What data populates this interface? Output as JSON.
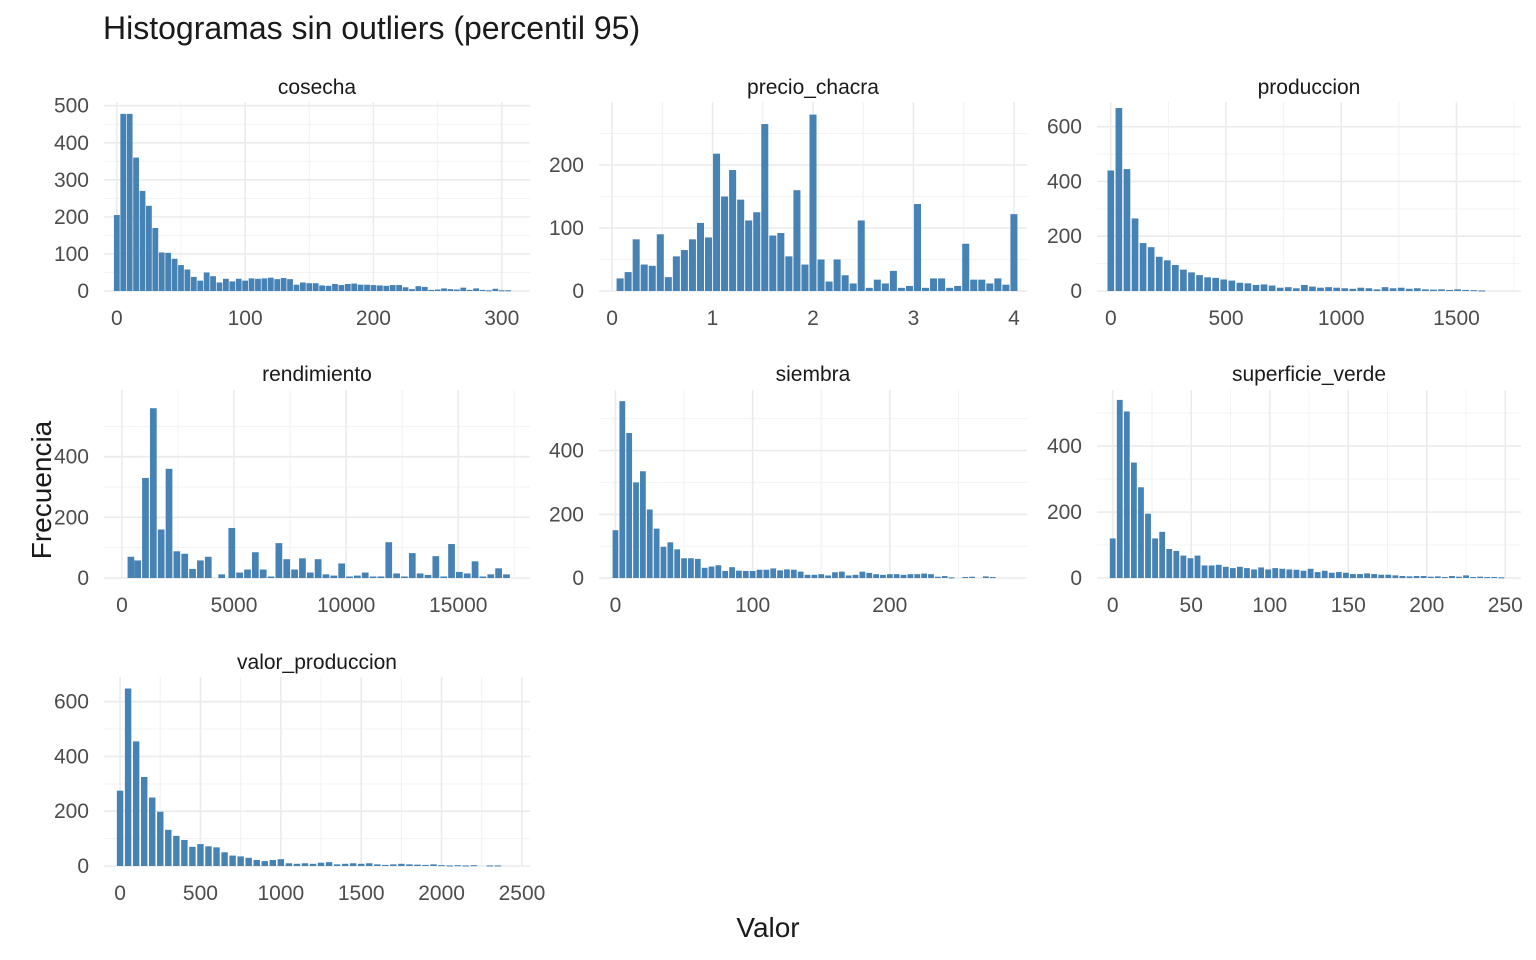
{
  "title": "Histogramas sin outliers (percentil 95)",
  "xlabel": "Valor",
  "ylabel": "Frecuencia",
  "colors": {
    "bar": "#4682B4",
    "grid_major": "#EBEBEB",
    "grid_minor": "#F3F3F3",
    "tick_text": "#4D4D4D"
  },
  "chart_data": [
    {
      "type": "bar",
      "facet": "cosecha",
      "grid": true,
      "xlim": [
        -10,
        322
      ],
      "ylim": [
        0,
        510
      ],
      "x_ticks": [
        0,
        100,
        200,
        300
      ],
      "y_ticks": [
        0,
        100,
        200,
        300,
        400,
        500
      ],
      "bin_width": 4.5,
      "x": [
        0,
        5,
        10,
        15,
        20,
        25,
        30,
        35,
        40,
        45,
        50,
        55,
        60,
        65,
        70,
        75,
        80,
        85,
        90,
        95,
        100,
        105,
        110,
        115,
        120,
        125,
        130,
        135,
        140,
        145,
        150,
        155,
        160,
        165,
        170,
        175,
        180,
        185,
        190,
        195,
        200,
        205,
        210,
        215,
        220,
        225,
        230,
        235,
        240,
        245,
        250,
        255,
        260,
        265,
        270,
        275,
        280,
        285,
        290,
        295,
        300,
        305
      ],
      "values": [
        205,
        478,
        478,
        360,
        270,
        230,
        170,
        104,
        103,
        87,
        70,
        58,
        38,
        28,
        50,
        40,
        23,
        33,
        26,
        33,
        28,
        34,
        33,
        34,
        36,
        32,
        35,
        32,
        17,
        23,
        21,
        21,
        15,
        14,
        19,
        16,
        19,
        20,
        17,
        17,
        16,
        15,
        14,
        16,
        16,
        10,
        5,
        13,
        11,
        3,
        4,
        7,
        5,
        4,
        9,
        3,
        7,
        3,
        2,
        6,
        2,
        2
      ]
    },
    {
      "type": "bar",
      "facet": "precio_chacra",
      "grid": true,
      "xlim": [
        -0.13,
        4.13
      ],
      "ylim": [
        0,
        300
      ],
      "x_ticks": [
        0,
        1,
        2,
        3,
        4
      ],
      "y_ticks": [
        0,
        100,
        200
      ],
      "bin_width": 0.07,
      "x": [
        0.08,
        0.16,
        0.24,
        0.32,
        0.4,
        0.48,
        0.56,
        0.64,
        0.72,
        0.8,
        0.88,
        0.96,
        1.04,
        1.12,
        1.2,
        1.28,
        1.36,
        1.44,
        1.52,
        1.6,
        1.68,
        1.76,
        1.84,
        1.92,
        2.0,
        2.08,
        2.16,
        2.24,
        2.32,
        2.4,
        2.48,
        2.56,
        2.64,
        2.72,
        2.8,
        2.88,
        2.96,
        3.04,
        3.12,
        3.2,
        3.28,
        3.36,
        3.44,
        3.52,
        3.6,
        3.68,
        3.76,
        3.84,
        3.92,
        4.0
      ],
      "values": [
        20,
        30,
        82,
        42,
        40,
        90,
        22,
        55,
        65,
        82,
        108,
        85,
        218,
        150,
        192,
        145,
        112,
        125,
        265,
        88,
        92,
        55,
        160,
        42,
        280,
        50,
        15,
        50,
        25,
        12,
        112,
        5,
        18,
        12,
        32,
        5,
        8,
        138,
        5,
        20,
        20,
        5,
        8,
        75,
        18,
        18,
        12,
        20,
        10,
        122
      ]
    },
    {
      "type": "bar",
      "facet": "produccion",
      "grid": true,
      "xlim": [
        -60,
        1780
      ],
      "ylim": [
        0,
        690
      ],
      "x_ticks": [
        0,
        500,
        1000,
        1500
      ],
      "y_ticks": [
        0,
        200,
        400,
        600
      ],
      "bin_width": 29,
      "x": [
        0,
        35,
        70,
        105,
        140,
        175,
        210,
        245,
        280,
        315,
        350,
        385,
        420,
        455,
        490,
        525,
        560,
        595,
        630,
        665,
        700,
        735,
        770,
        805,
        840,
        875,
        910,
        945,
        980,
        1015,
        1050,
        1085,
        1120,
        1155,
        1190,
        1225,
        1260,
        1295,
        1330,
        1365,
        1400,
        1435,
        1470,
        1505,
        1540,
        1575,
        1610
      ],
      "values": [
        440,
        668,
        445,
        265,
        175,
        160,
        125,
        112,
        95,
        78,
        68,
        58,
        50,
        48,
        42,
        38,
        30,
        28,
        22,
        24,
        20,
        12,
        14,
        10,
        22,
        16,
        12,
        14,
        12,
        10,
        8,
        12,
        10,
        6,
        14,
        10,
        12,
        8,
        10,
        6,
        5,
        6,
        4,
        6,
        4,
        3,
        2
      ]
    },
    {
      "type": "bar",
      "facet": "rendimiento",
      "grid": true,
      "xlim": [
        -800,
        18200
      ],
      "ylim": [
        0,
        620
      ],
      "x_ticks": [
        0,
        5000,
        10000,
        15000
      ],
      "y_ticks": [
        0,
        200,
        400
      ],
      "bin_width": 300,
      "x": [
        400,
        700,
        1050,
        1400,
        1750,
        2100,
        2450,
        2800,
        3150,
        3500,
        3850,
        4450,
        4900,
        5250,
        5600,
        5950,
        6300,
        6650,
        7000,
        7350,
        7700,
        8050,
        8400,
        8750,
        9100,
        9450,
        9800,
        10150,
        10500,
        10850,
        11200,
        11550,
        11900,
        12250,
        12600,
        12950,
        13300,
        13650,
        14000,
        14350,
        14700,
        15050,
        15400,
        15750,
        16100,
        16450,
        16800,
        17150
      ],
      "values": [
        70,
        58,
        330,
        560,
        160,
        360,
        88,
        80,
        30,
        58,
        70,
        12,
        165,
        18,
        28,
        85,
        28,
        5,
        115,
        62,
        28,
        65,
        18,
        62,
        12,
        8,
        48,
        5,
        8,
        18,
        5,
        5,
        118,
        15,
        5,
        82,
        15,
        10,
        72,
        5,
        112,
        20,
        15,
        55,
        5,
        12,
        32,
        12
      ]
    },
    {
      "type": "bar",
      "facet": "siembra",
      "grid": true,
      "xlim": [
        -12,
        300
      ],
      "ylim": [
        0,
        590
      ],
      "x_ticks": [
        0,
        100,
        200
      ],
      "y_ticks": [
        0,
        200,
        400
      ],
      "bin_width": 4.2,
      "x": [
        0,
        5,
        10,
        15,
        20,
        25,
        30,
        35,
        40,
        45,
        50,
        55,
        60,
        65,
        70,
        75,
        80,
        85,
        90,
        95,
        100,
        105,
        110,
        115,
        120,
        125,
        130,
        135,
        140,
        145,
        150,
        155,
        160,
        165,
        170,
        175,
        180,
        185,
        190,
        195,
        200,
        205,
        210,
        215,
        220,
        225,
        230,
        235,
        240,
        245,
        250,
        255,
        260,
        265,
        270,
        275
      ],
      "values": [
        150,
        555,
        455,
        300,
        335,
        215,
        155,
        98,
        112,
        90,
        62,
        62,
        60,
        32,
        36,
        40,
        22,
        34,
        23,
        22,
        22,
        26,
        26,
        30,
        24,
        27,
        26,
        20,
        10,
        10,
        12,
        8,
        18,
        20,
        8,
        10,
        20,
        16,
        12,
        10,
        12,
        12,
        10,
        12,
        12,
        14,
        12,
        4,
        6,
        2,
        0,
        3,
        4,
        0,
        5,
        3
      ]
    },
    {
      "type": "bar",
      "facet": "superficie_verde",
      "grid": true,
      "xlim": [
        -10,
        260
      ],
      "ylim": [
        0,
        570
      ],
      "x_ticks": [
        0,
        50,
        100,
        150,
        200,
        250
      ],
      "y_ticks": [
        0,
        200,
        400
      ],
      "bin_width": 3.7,
      "x": [
        0,
        4.5,
        9,
        13.5,
        18,
        22.5,
        27,
        31.5,
        36,
        40.5,
        45,
        49.5,
        54,
        58.5,
        63,
        67.5,
        72,
        76.5,
        81,
        85.5,
        90,
        94.5,
        99,
        103.5,
        108,
        112.5,
        117,
        121.5,
        126,
        130.5,
        135,
        139.5,
        144,
        148.5,
        153,
        157.5,
        162,
        166.5,
        171,
        175.5,
        180,
        184.5,
        189,
        193.5,
        198,
        202.5,
        207,
        211.5,
        216,
        220.5,
        225,
        229.5,
        234,
        238.5,
        243,
        247.5
      ],
      "values": [
        120,
        540,
        505,
        350,
        275,
        195,
        120,
        140,
        88,
        82,
        68,
        60,
        68,
        38,
        38,
        40,
        34,
        30,
        34,
        30,
        26,
        32,
        26,
        30,
        28,
        26,
        25,
        22,
        28,
        18,
        22,
        16,
        18,
        16,
        12,
        12,
        14,
        12,
        10,
        10,
        8,
        6,
        5,
        6,
        6,
        4,
        5,
        3,
        6,
        4,
        8,
        3,
        4,
        3,
        3,
        2
      ]
    },
    {
      "type": "bar",
      "facet": "valor_produccion",
      "grid": true,
      "xlim": [
        -100,
        2550
      ],
      "ylim": [
        0,
        690
      ],
      "x_ticks": [
        0,
        500,
        1000,
        1500,
        2000,
        2500
      ],
      "y_ticks": [
        0,
        200,
        400,
        600
      ],
      "bin_width": 40,
      "x": [
        0,
        50,
        100,
        150,
        200,
        250,
        300,
        350,
        400,
        450,
        500,
        550,
        600,
        650,
        700,
        750,
        800,
        850,
        900,
        950,
        1000,
        1050,
        1100,
        1150,
        1200,
        1250,
        1300,
        1350,
        1400,
        1450,
        1500,
        1550,
        1600,
        1650,
        1700,
        1750,
        1800,
        1850,
        1900,
        1950,
        2000,
        2050,
        2100,
        2150,
        2200,
        2250,
        2300,
        2350
      ],
      "values": [
        275,
        648,
        455,
        325,
        250,
        198,
        132,
        110,
        95,
        70,
        80,
        72,
        68,
        50,
        38,
        35,
        30,
        22,
        18,
        22,
        25,
        10,
        8,
        10,
        8,
        12,
        14,
        6,
        8,
        10,
        8,
        10,
        6,
        4,
        6,
        8,
        6,
        5,
        4,
        6,
        3,
        2,
        3,
        2,
        3,
        0,
        2,
        2
      ]
    }
  ]
}
